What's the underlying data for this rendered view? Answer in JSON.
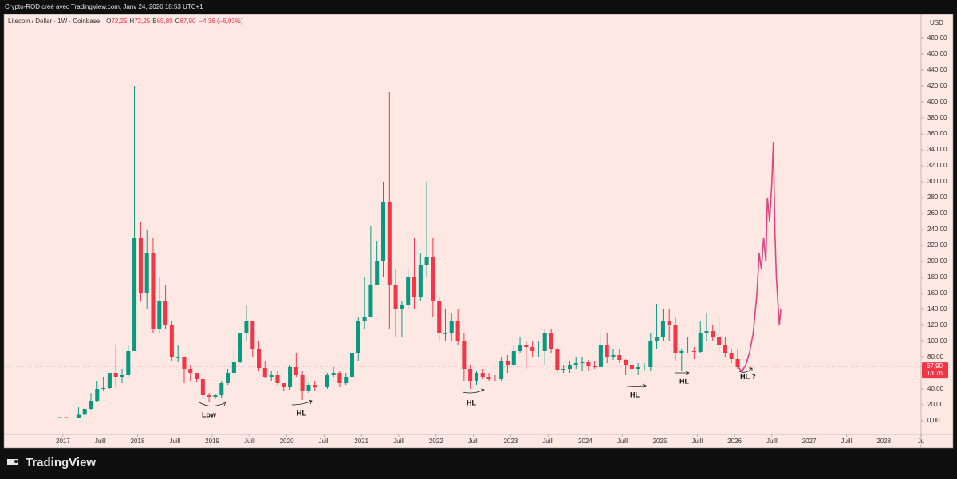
{
  "header": {
    "author_line": "Crypto-ROD créé avec TradingView.com, Janv 24, 2026 18:53 UTC+1",
    "brand": "TradingView"
  },
  "chart_data": {
    "type": "candlestick",
    "title": "Litecoin / Dollar · 1W · Coinbase",
    "ohlc_legend": {
      "labels": [
        "O",
        "H",
        "B",
        "C"
      ],
      "values": [
        72.25,
        72.25,
        65.8,
        67.9
      ],
      "value_labels": [
        "72,25",
        "72,25",
        "65,80",
        "67,90"
      ],
      "change": "−4,36 (−6,03%)"
    },
    "currency": "USD",
    "last_price": {
      "value": 67.9,
      "label": "67,90",
      "countdown": "1d 7h"
    },
    "up_color": "#089981",
    "down_color": "#f23645",
    "x": [
      2016.625,
      2016.708,
      2016.792,
      2016.875,
      2016.958,
      2017.042,
      2017.125,
      2017.208,
      2017.292,
      2017.375,
      2017.458,
      2017.542,
      2017.625,
      2017.708,
      2017.792,
      2017.875,
      2017.958,
      2018.042,
      2018.125,
      2018.208,
      2018.292,
      2018.375,
      2018.458,
      2018.542,
      2018.625,
      2018.708,
      2018.792,
      2018.875,
      2018.958,
      2019.042,
      2019.125,
      2019.208,
      2019.292,
      2019.375,
      2019.458,
      2019.542,
      2019.625,
      2019.708,
      2019.792,
      2019.875,
      2019.958,
      2020.042,
      2020.125,
      2020.208,
      2020.292,
      2020.375,
      2020.458,
      2020.542,
      2020.625,
      2020.708,
      2020.792,
      2020.875,
      2020.958,
      2021.042,
      2021.125,
      2021.208,
      2021.292,
      2021.375,
      2021.458,
      2021.542,
      2021.625,
      2021.708,
      2021.792,
      2021.875,
      2021.958,
      2022.042,
      2022.125,
      2022.208,
      2022.292,
      2022.375,
      2022.458,
      2022.542,
      2022.625,
      2022.708,
      2022.792,
      2022.875,
      2022.958,
      2023.042,
      2023.125,
      2023.208,
      2023.292,
      2023.375,
      2023.458,
      2023.542,
      2023.625,
      2023.708,
      2023.792,
      2023.875,
      2023.958,
      2024.042,
      2024.125,
      2024.208,
      2024.292,
      2024.375,
      2024.458,
      2024.542,
      2024.625,
      2024.708,
      2024.792,
      2024.875,
      2024.958,
      2025.042,
      2025.125,
      2025.208,
      2025.292,
      2025.375,
      2025.458,
      2025.542,
      2025.625,
      2025.708,
      2025.792,
      2025.875,
      2025.958,
      2026.042
    ],
    "open": [
      3.8,
      3.7,
      3.8,
      3.9,
      3.9,
      4.4,
      4.0,
      3.7,
      7.6,
      15,
      25,
      40,
      41,
      60,
      55,
      57,
      88,
      230,
      160,
      210,
      115,
      150,
      120,
      80,
      80,
      65,
      60,
      52,
      33,
      30,
      33,
      47,
      60,
      74,
      110,
      125,
      90,
      66,
      55,
      57,
      48,
      42,
      68,
      58,
      38,
      45,
      43,
      42,
      58,
      60,
      47,
      55,
      85,
      125,
      130,
      170,
      200,
      275,
      170,
      140,
      145,
      180,
      155,
      195,
      205,
      150,
      110,
      110,
      125,
      100,
      65,
      50,
      60,
      55,
      53,
      52,
      75,
      70,
      88,
      95,
      92,
      87,
      88,
      110,
      90,
      64,
      65,
      70,
      72,
      74,
      69,
      68,
      95,
      80,
      83,
      76,
      70,
      65,
      67,
      68,
      100,
      105,
      125,
      120,
      85,
      88,
      88,
      86,
      110,
      113,
      105,
      95,
      85,
      78
    ],
    "high": [
      4.0,
      4.0,
      4.0,
      4.1,
      4.6,
      4.6,
      4.1,
      17,
      16,
      35,
      50,
      55,
      60,
      95,
      65,
      95,
      420,
      250,
      240,
      230,
      180,
      170,
      125,
      95,
      80,
      70,
      60,
      55,
      35,
      34,
      50,
      65,
      90,
      110,
      145,
      125,
      100,
      75,
      62,
      62,
      48,
      70,
      85,
      62,
      48,
      50,
      49,
      60,
      68,
      63,
      60,
      95,
      130,
      180,
      245,
      225,
      300,
      413,
      190,
      150,
      190,
      230,
      210,
      300,
      230,
      155,
      140,
      135,
      140,
      110,
      70,
      62,
      65,
      60,
      57,
      80,
      82,
      95,
      105,
      100,
      100,
      100,
      115,
      115,
      93,
      70,
      75,
      80,
      80,
      76,
      75,
      110,
      110,
      90,
      90,
      78,
      70,
      72,
      72,
      110,
      147,
      140,
      140,
      130,
      90,
      105,
      92,
      125,
      135,
      120,
      130,
      105,
      90,
      90
    ],
    "low": [
      3.5,
      3.6,
      3.7,
      3.6,
      3.9,
      3.6,
      3.7,
      3.6,
      7,
      14,
      23,
      38,
      40,
      42,
      48,
      55,
      88,
      150,
      140,
      110,
      110,
      115,
      75,
      74,
      48,
      50,
      49,
      28,
      23,
      28,
      29,
      45,
      55,
      72,
      100,
      80,
      62,
      54,
      50,
      45,
      38,
      39,
      55,
      26,
      35,
      38,
      40,
      40,
      55,
      42,
      45,
      53,
      75,
      115,
      130,
      170,
      180,
      115,
      105,
      105,
      140,
      140,
      150,
      180,
      130,
      100,
      100,
      100,
      95,
      50,
      40,
      45,
      53,
      50,
      50,
      50,
      60,
      68,
      85,
      65,
      80,
      80,
      70,
      85,
      60,
      60,
      60,
      65,
      62,
      62,
      65,
      67,
      72,
      76,
      72,
      57,
      55,
      58,
      62,
      62,
      90,
      100,
      100,
      75,
      63,
      85,
      78,
      85,
      100,
      100,
      85,
      80,
      73,
      65
    ],
    "close": [
      3.7,
      3.8,
      3.9,
      3.9,
      4.4,
      4.0,
      3.7,
      7.6,
      15,
      25,
      40,
      41,
      60,
      55,
      57,
      88,
      230,
      160,
      210,
      115,
      150,
      120,
      80,
      80,
      65,
      60,
      52,
      33,
      30,
      33,
      47,
      60,
      74,
      110,
      125,
      90,
      66,
      55,
      57,
      48,
      42,
      68,
      58,
      38,
      45,
      43,
      42,
      58,
      60,
      47,
      55,
      85,
      125,
      130,
      170,
      200,
      275,
      170,
      140,
      145,
      180,
      155,
      195,
      205,
      150,
      110,
      110,
      125,
      100,
      65,
      50,
      60,
      55,
      53,
      52,
      75,
      70,
      88,
      95,
      92,
      87,
      88,
      110,
      90,
      64,
      65,
      70,
      72,
      74,
      69,
      68,
      95,
      80,
      83,
      76,
      70,
      65,
      67,
      68,
      100,
      105,
      125,
      120,
      85,
      88,
      88,
      86,
      110,
      113,
      105,
      95,
      85,
      78,
      67.9
    ],
    "projection": {
      "color": "#e0457b",
      "x": [
        2026.04,
        2026.1,
        2026.15,
        2026.2,
        2026.25,
        2026.3,
        2026.33,
        2026.36,
        2026.39,
        2026.42,
        2026.44,
        2026.47,
        2026.5,
        2026.52,
        2026.54,
        2026.56,
        2026.58,
        2026.6,
        2026.62
      ],
      "values": [
        68,
        62,
        70,
        85,
        110,
        160,
        210,
        190,
        230,
        200,
        280,
        250,
        300,
        350,
        240,
        180,
        150,
        120,
        140
      ]
    },
    "annotations": [
      "Low",
      "HL",
      "HL",
      "HL",
      "HL",
      "HL ?"
    ],
    "xlim": [
      2016.21,
      2028.5
    ],
    "ylim": [
      -17,
      510
    ],
    "xticks": [
      {
        "value": 2017,
        "label": "2017"
      },
      {
        "value": 2017.5,
        "label": "Juill"
      },
      {
        "value": 2018,
        "label": "2018"
      },
      {
        "value": 2018.5,
        "label": "Juill"
      },
      {
        "value": 2019,
        "label": "2019"
      },
      {
        "value": 2019.5,
        "label": "Juill"
      },
      {
        "value": 2020,
        "label": "2020"
      },
      {
        "value": 2020.5,
        "label": "Juill"
      },
      {
        "value": 2021,
        "label": "2021"
      },
      {
        "value": 2021.5,
        "label": "Juill"
      },
      {
        "value": 2022,
        "label": "2022"
      },
      {
        "value": 2022.5,
        "label": "Juill"
      },
      {
        "value": 2023,
        "label": "2023"
      },
      {
        "value": 2023.5,
        "label": "Juill"
      },
      {
        "value": 2024,
        "label": "2024"
      },
      {
        "value": 2024.5,
        "label": "Juill"
      },
      {
        "value": 2025,
        "label": "2025"
      },
      {
        "value": 2025.5,
        "label": "Juill"
      },
      {
        "value": 2026,
        "label": "2026"
      },
      {
        "value": 2026.5,
        "label": "Juill"
      },
      {
        "value": 2027,
        "label": "2027"
      },
      {
        "value": 2027.5,
        "label": "Juill"
      },
      {
        "value": 2028,
        "label": "2028"
      },
      {
        "value": 2028.5,
        "label": "Ju"
      }
    ],
    "yticks": [
      {
        "value": 0,
        "label": "0,00"
      },
      {
        "value": 20,
        "label": "20,00"
      },
      {
        "value": 40,
        "label": "40,00"
      },
      {
        "value": 60,
        "label": "60,00"
      },
      {
        "value": 80,
        "label": "80,00"
      },
      {
        "value": 100,
        "label": "100,00"
      },
      {
        "value": 120,
        "label": "120,00"
      },
      {
        "value": 140,
        "label": "140,00"
      },
      {
        "value": 160,
        "label": "160,00"
      },
      {
        "value": 180,
        "label": "180,00"
      },
      {
        "value": 200,
        "label": "200,00"
      },
      {
        "value": 220,
        "label": "220,00"
      },
      {
        "value": 240,
        "label": "240,00"
      },
      {
        "value": 260,
        "label": "260,00"
      },
      {
        "value": 280,
        "label": "280,00"
      },
      {
        "value": 300,
        "label": "300,00"
      },
      {
        "value": 320,
        "label": "320,00"
      },
      {
        "value": 340,
        "label": "340,00"
      },
      {
        "value": 360,
        "label": "360,00"
      },
      {
        "value": 380,
        "label": "380,00"
      },
      {
        "value": 400,
        "label": "400,00"
      },
      {
        "value": 420,
        "label": "420,00"
      },
      {
        "value": 440,
        "label": "440,00"
      },
      {
        "value": 460,
        "label": "460,00"
      },
      {
        "value": 480,
        "label": "480,00"
      }
    ],
    "grid": false
  }
}
